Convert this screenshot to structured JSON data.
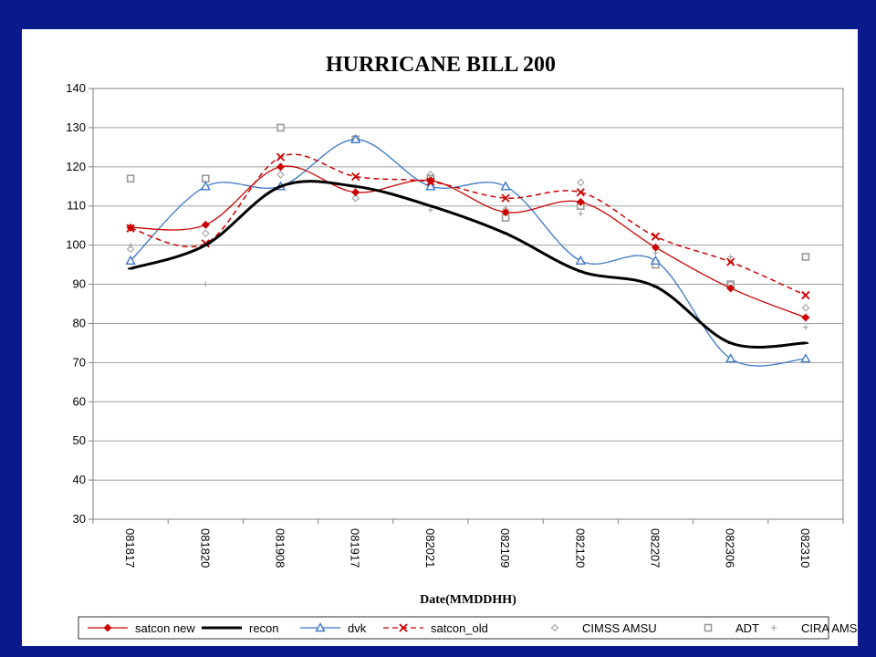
{
  "chart_data": {
    "type": "line",
    "title": "HURRICANE BILL 200",
    "xlabel": "Date(MMDDHH)",
    "ylabel": "",
    "ylim": [
      30,
      140
    ],
    "yticks": [
      30,
      40,
      50,
      60,
      70,
      80,
      90,
      100,
      110,
      120,
      130,
      140
    ],
    "categories": [
      "081817",
      "081820",
      "081908",
      "081917",
      "082021",
      "082109",
      "082120",
      "082207",
      "082306",
      "082310"
    ],
    "grid": "horizontal",
    "legend_position": "bottom",
    "series": [
      {
        "name": "satcon new",
        "color": "#cc0000",
        "style": "solid",
        "marker": "diamond",
        "values": [
          104.5,
          105.2,
          120.0,
          113.5,
          116.5,
          108.4,
          111.0,
          99.4,
          89.0,
          81.5
        ]
      },
      {
        "name": "recon",
        "color": "#000000",
        "style": "solid-thick",
        "marker": "dash",
        "values": [
          94.0,
          100.0,
          115.0,
          115.0,
          110.0,
          103.0,
          93.3,
          89.4,
          75.0,
          75.0
        ]
      },
      {
        "name": "dvk",
        "color": "#3c78c8",
        "style": "solid",
        "marker": "triangle",
        "values": [
          96.0,
          115.0,
          115.0,
          127.0,
          115.0,
          115.0,
          96.0,
          96.0,
          71.0,
          71.0
        ]
      },
      {
        "name": "satcon_old",
        "color": "#cc0000",
        "style": "dashed",
        "marker": "x",
        "values": [
          104.3,
          100.4,
          122.5,
          117.5,
          116.2,
          112.0,
          113.5,
          102.2,
          95.7,
          87.2
        ]
      },
      {
        "name": "CIMSS AMSU",
        "color": "#999999",
        "style": "none",
        "marker": "small-diamond",
        "values": [
          99.0,
          103.0,
          118.0,
          112.0,
          118.0,
          109.0,
          116.0,
          96.0,
          90.0,
          84.0
        ]
      },
      {
        "name": "ADT",
        "color": "#999999",
        "style": "none",
        "marker": "square",
        "values": [
          117.0,
          117.0,
          130.0,
          127.0,
          117.0,
          107.0,
          110.0,
          95.0,
          90.0,
          97.0
        ]
      },
      {
        "name": "CIRA AMSU",
        "color": "#999999",
        "style": "none",
        "marker": "plus",
        "values": [
          100.0,
          90.0,
          115.0,
          115.0,
          109.0,
          108.0,
          108.0,
          98.0,
          97.0,
          79.0
        ]
      }
    ]
  }
}
